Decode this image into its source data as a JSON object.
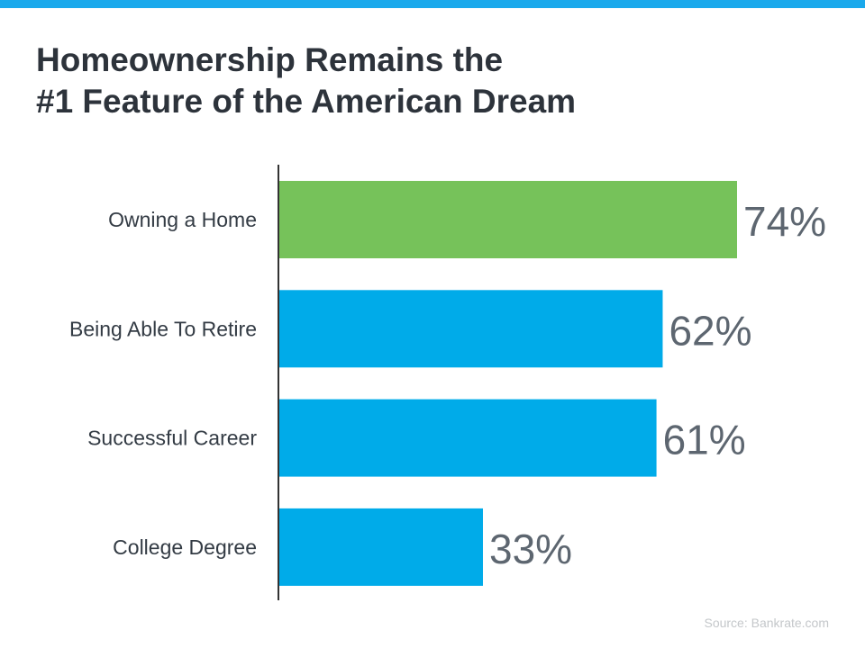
{
  "chart_data": {
    "type": "bar",
    "orientation": "horizontal",
    "title": [
      "Homeownership Remains the",
      "#1 Feature of the American Dream"
    ],
    "categories": [
      "Owning a Home",
      "Being Able To Retire",
      "Successful Career",
      "College Degree"
    ],
    "values": [
      74,
      62,
      61,
      33
    ],
    "data_labels": [
      "74%",
      "62%",
      "61%",
      "33%"
    ],
    "unit": "%",
    "xlim": [
      0,
      74
    ],
    "grid": false,
    "bar_colors": [
      "#76c25a",
      "#00abe9",
      "#00abe9",
      "#00abe9"
    ],
    "label_color": "#5d6670",
    "category_color": "#333b44"
  },
  "source": "Source: Bankrate.com",
  "colors": {
    "accent_stripe": "#1aa9ec",
    "title": "#2d333b",
    "axis": "#333333"
  }
}
